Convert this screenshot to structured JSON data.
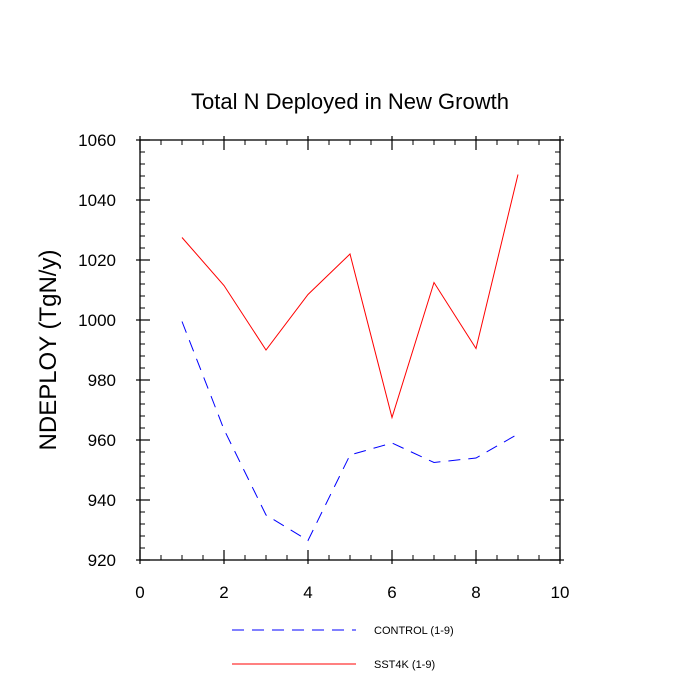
{
  "chart_data": {
    "type": "line",
    "title": "Total N Deployed in New Growth",
    "xlabel": "",
    "ylabel": "NDEPLOY  (TgN/y)",
    "xlim": [
      0,
      10
    ],
    "ylim": [
      920,
      1060
    ],
    "x_ticks": [
      0,
      2,
      4,
      6,
      8,
      10
    ],
    "y_ticks": [
      920,
      940,
      960,
      980,
      1000,
      1020,
      1040,
      1060
    ],
    "x_tick_labels": [
      "0",
      "2",
      "4",
      "6",
      "8",
      "10"
    ],
    "y_tick_labels": [
      "920",
      "940",
      "960",
      "980",
      "1000",
      "1020",
      "1040",
      "1060"
    ],
    "x_minor_step": 0.5,
    "y_minor_step": 4,
    "grid": false,
    "legend_position": "bottom",
    "series": [
      {
        "name": "CONTROL (1-9)",
        "color": "#0000ff",
        "style": "dashed",
        "x": [
          1,
          2,
          3,
          4,
          5,
          6,
          7,
          8,
          9
        ],
        "values": [
          999.5,
          963.5,
          935,
          926.5,
          955,
          959,
          952.5,
          954,
          962
        ]
      },
      {
        "name": "SST4K (1-9)",
        "color": "#ff0000",
        "style": "solid",
        "x": [
          1,
          2,
          3,
          4,
          5,
          6,
          7,
          8,
          9
        ],
        "values": [
          1027.5,
          1011.5,
          990,
          1008.5,
          1022,
          967.5,
          1012.5,
          990.5,
          1048.5
        ]
      }
    ]
  }
}
